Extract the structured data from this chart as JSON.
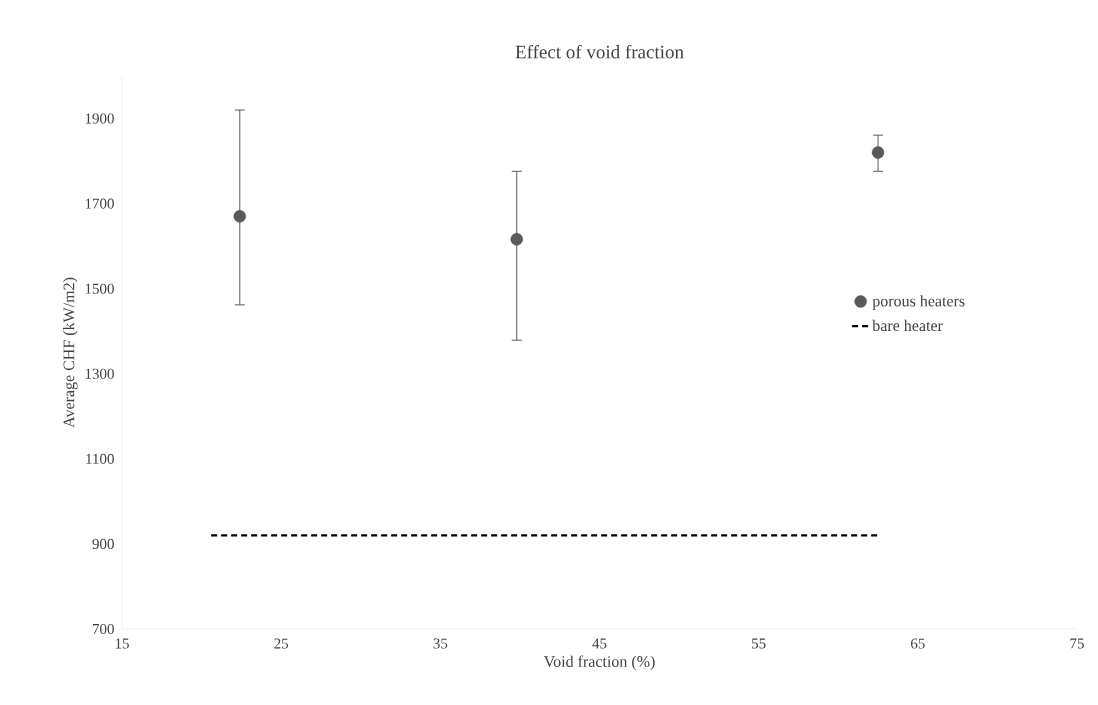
{
  "chart_data": {
    "type": "scatter",
    "title": "Effect of void fraction",
    "xlabel": "Void fraction (%)",
    "ylabel": "Average CHF (kW/m2)",
    "xlim": [
      15,
      75
    ],
    "xticks": [
      15,
      25,
      35,
      45,
      55,
      65,
      75
    ],
    "ylim": [
      700,
      2000
    ],
    "yticks": [
      700,
      900,
      1100,
      1300,
      1500,
      1700,
      1900
    ],
    "series": [
      {
        "name": "porous heaters",
        "color": "#5a5a5a",
        "marker": "circle",
        "x": [
          22.4,
          39.8,
          62.5
        ],
        "values": [
          1670,
          1616,
          1820
        ],
        "errors": [
          [
            1462,
            1920
          ],
          [
            1379,
            1776
          ],
          [
            1776,
            1861
          ]
        ]
      },
      {
        "name": "bare heater",
        "type": "line",
        "color": "#000000",
        "marker": "none",
        "line_style": "dashed",
        "x": [
          20.6,
          62.5
        ],
        "values": [
          920,
          920
        ]
      }
    ],
    "grid": false,
    "legend": "right"
  }
}
